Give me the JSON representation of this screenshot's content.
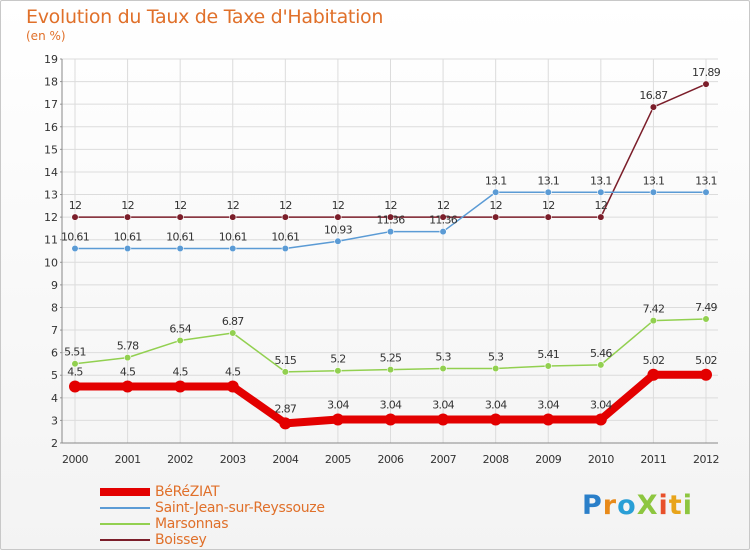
{
  "title": "Evolution du Taux de Taxe d'Habitation",
  "subtitle": "(en %)",
  "logo": {
    "text": "Proxiti",
    "letters": [
      {
        "ch": "P",
        "color": "#2a7fc9"
      },
      {
        "ch": "r",
        "color": "#e88a1a"
      },
      {
        "ch": "o",
        "color": "#2a9fd6"
      },
      {
        "ch": "X",
        "color": "#8dc63f"
      },
      {
        "ch": "i",
        "color": "#e8502a"
      },
      {
        "ch": "t",
        "color": "#e8a41a"
      },
      {
        "ch": "i",
        "color": "#8dc63f"
      }
    ]
  },
  "chart_data": {
    "type": "line",
    "x": [
      "2000",
      "2001",
      "2002",
      "2003",
      "2004",
      "2005",
      "2006",
      "2007",
      "2008",
      "2009",
      "2010",
      "2011",
      "2012"
    ],
    "ylim": [
      2,
      19
    ],
    "yticks": [
      2,
      3,
      4,
      5,
      6,
      7,
      8,
      9,
      10,
      11,
      12,
      13,
      14,
      15,
      16,
      17,
      18,
      19
    ],
    "grid": true,
    "legend_position": "bottom-left",
    "series": [
      {
        "name": "BéRéZIAT",
        "color": "#e30000",
        "width": 8,
        "values": [
          4.5,
          4.5,
          4.5,
          4.5,
          2.87,
          3.04,
          3.04,
          3.04,
          3.04,
          3.04,
          3.04,
          5.02,
          5.02
        ],
        "labels": [
          "4.5",
          "4.5",
          "4.5",
          "4.5",
          "2.87",
          "3.04",
          "3.04",
          "3.04",
          "3.04",
          "3.04",
          "3.04",
          "5.02",
          "5.02"
        ]
      },
      {
        "name": "Saint-Jean-sur-Reyssouze",
        "color": "#5b9bd5",
        "width": 1.5,
        "values": [
          10.61,
          10.61,
          10.61,
          10.61,
          10.61,
          10.93,
          11.36,
          11.36,
          13.1,
          13.1,
          13.1,
          13.1,
          13.1
        ],
        "labels": [
          "10.61",
          "10.61",
          "10.61",
          "10.61",
          "10.61",
          "10.93",
          "11.36",
          "11.36",
          "13.1",
          "13.1",
          "13.1",
          "13.1",
          "13.1"
        ]
      },
      {
        "name": "Marsonnas",
        "color": "#92d050",
        "width": 1.5,
        "values": [
          5.51,
          5.78,
          6.54,
          6.87,
          5.15,
          5.2,
          5.25,
          5.3,
          5.3,
          5.41,
          5.46,
          7.42,
          7.49
        ],
        "labels": [
          "5.51",
          "5.78",
          "6.54",
          "6.87",
          "5.15",
          "5.2",
          "5.25",
          "5.3",
          "5.3",
          "5.41",
          "5.46",
          "7.42",
          "7.49"
        ]
      },
      {
        "name": "Boissey",
        "color": "#7b1e2a",
        "width": 1.5,
        "values": [
          12,
          12,
          12,
          12,
          12,
          12,
          12,
          12,
          12,
          12,
          12,
          16.87,
          17.89
        ],
        "labels": [
          "12",
          "12",
          "12",
          "12",
          "12",
          "12",
          "12",
          "12",
          "12",
          "12",
          "12",
          "16.87",
          "17.89"
        ]
      }
    ]
  }
}
